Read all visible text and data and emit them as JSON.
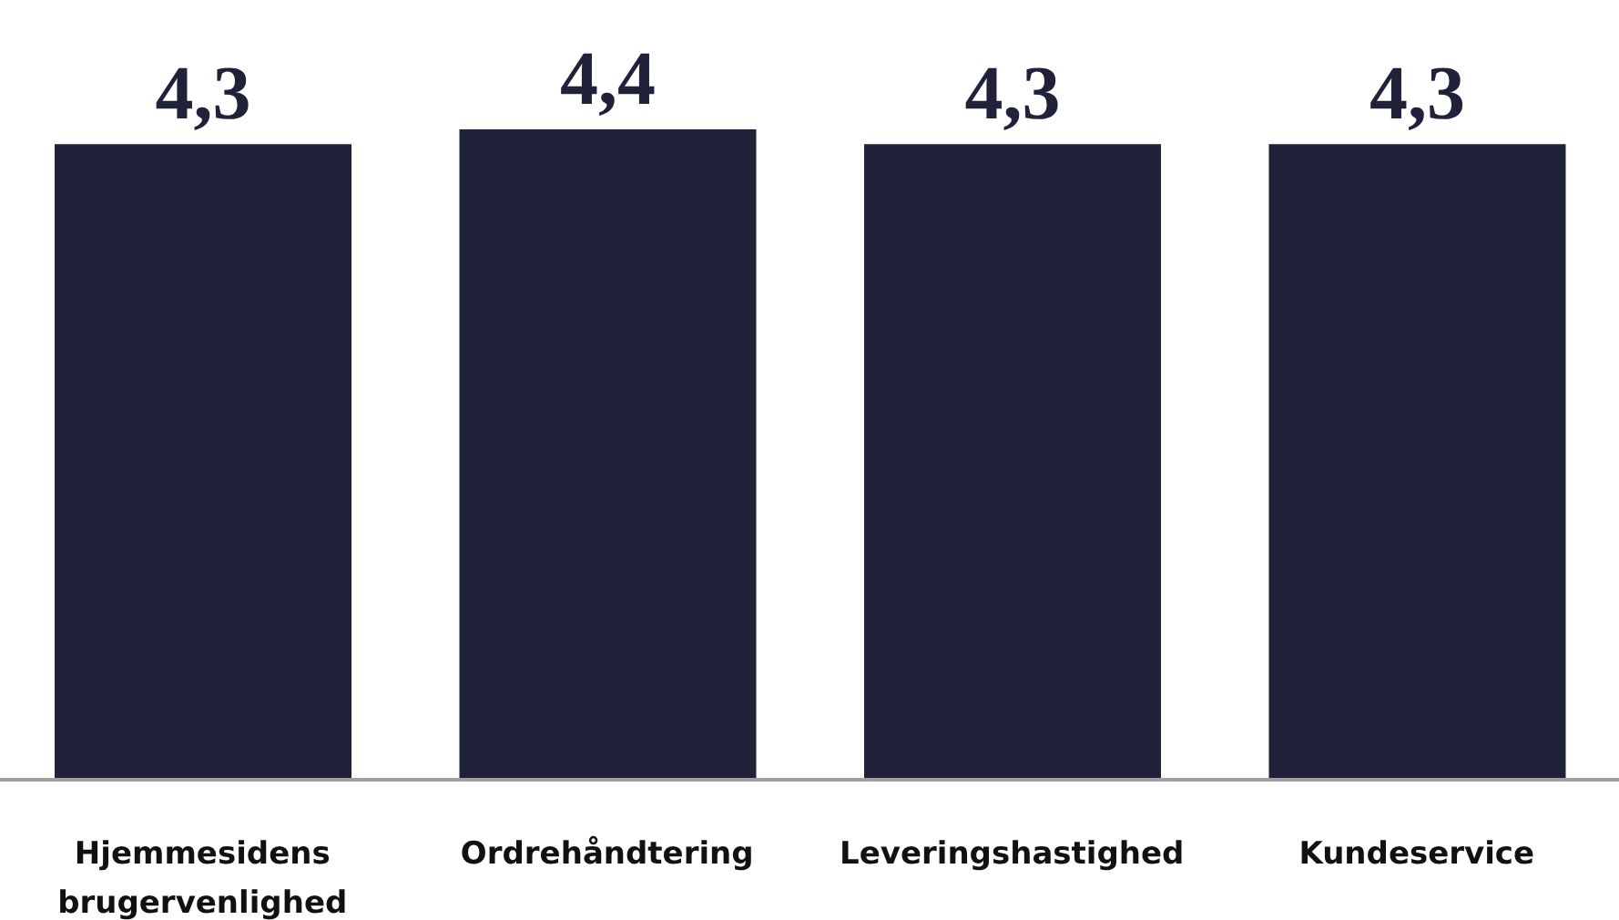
{
  "chart_data": {
    "type": "bar",
    "categories": [
      "Hjemmesidens brugervenlighed",
      "Ordrehåndtering",
      "Leveringshastighed",
      "Kundeservice"
    ],
    "values": [
      4.3,
      4.4,
      4.3,
      4.3
    ],
    "value_labels": [
      "4,3",
      "4,4",
      "4,3",
      "4,3"
    ],
    "color": "#20223a"
  }
}
